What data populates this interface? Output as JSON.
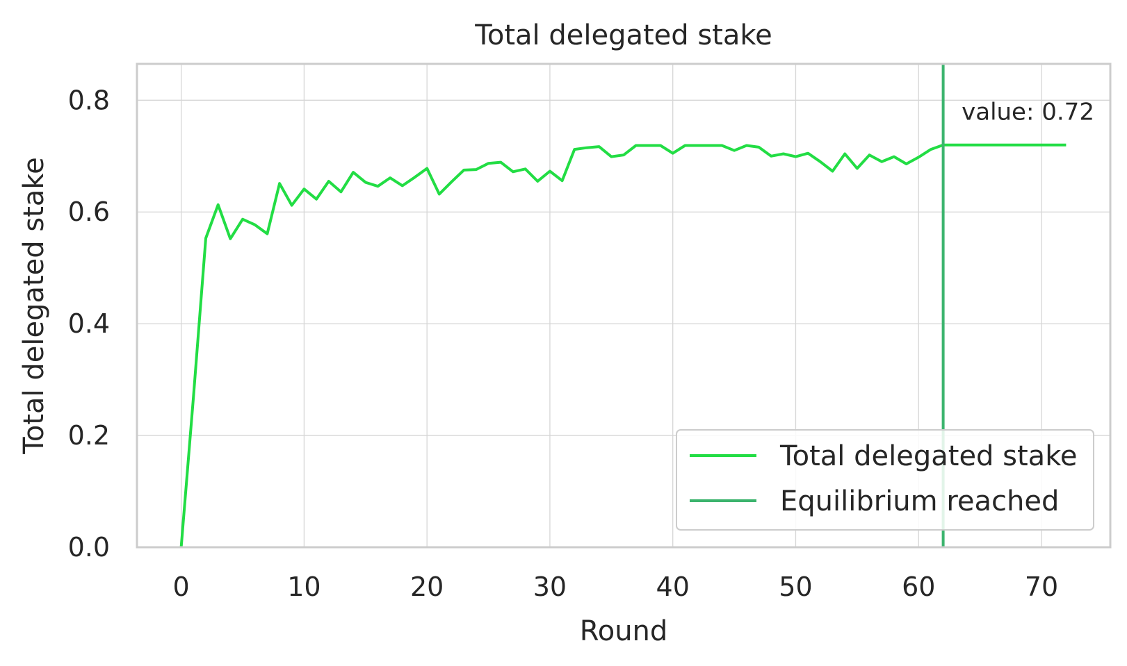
{
  "chart_data": {
    "type": "line",
    "title": "Total delegated stake",
    "xlabel": "Round",
    "ylabel": "Total delegated stake",
    "xlim": [
      -3.6,
      75.6
    ],
    "ylim": [
      0.0,
      0.865
    ],
    "xticks": [
      0,
      10,
      20,
      30,
      40,
      50,
      60,
      70
    ],
    "yticks": [
      0.0,
      0.2,
      0.4,
      0.6,
      0.8
    ],
    "ytick_labels": [
      "0.0",
      "0.2",
      "0.4",
      "0.6",
      "0.8"
    ],
    "grid": true,
    "legend_position": "lower right",
    "series": [
      {
        "name": "Total delegated stake",
        "color": "#22dd44",
        "x": [
          0,
          1,
          2,
          3,
          4,
          5,
          6,
          7,
          8,
          9,
          10,
          11,
          12,
          13,
          14,
          15,
          16,
          17,
          18,
          19,
          20,
          21,
          22,
          23,
          24,
          25,
          26,
          27,
          28,
          29,
          30,
          31,
          32,
          33,
          34,
          35,
          36,
          37,
          38,
          39,
          40,
          41,
          42,
          43,
          44,
          45,
          46,
          47,
          48,
          49,
          50,
          51,
          52,
          53,
          54,
          55,
          56,
          57,
          58,
          59,
          60,
          61,
          62,
          63,
          64,
          65,
          66,
          67,
          68,
          69,
          70,
          71,
          72
        ],
        "y": [
          0.0,
          0.27,
          0.553,
          0.613,
          0.552,
          0.587,
          0.577,
          0.561,
          0.651,
          0.612,
          0.641,
          0.623,
          0.655,
          0.636,
          0.671,
          0.653,
          0.646,
          0.661,
          0.647,
          0.662,
          0.678,
          0.632,
          0.654,
          0.675,
          0.676,
          0.687,
          0.689,
          0.672,
          0.677,
          0.655,
          0.673,
          0.656,
          0.712,
          0.715,
          0.717,
          0.699,
          0.702,
          0.719,
          0.719,
          0.719,
          0.705,
          0.719,
          0.719,
          0.719,
          0.719,
          0.71,
          0.719,
          0.716,
          0.7,
          0.704,
          0.699,
          0.705,
          0.69,
          0.673,
          0.704,
          0.678,
          0.702,
          0.69,
          0.699,
          0.686,
          0.698,
          0.712,
          0.72,
          0.72,
          0.72,
          0.72,
          0.72,
          0.72,
          0.72,
          0.72,
          0.72,
          0.72,
          0.72
        ]
      },
      {
        "name": "Equilibrium reached",
        "color": "#3cb46e",
        "type": "vline",
        "x": 62
      }
    ],
    "annotations": [
      {
        "text": "value: 0.72",
        "x": 63.5,
        "y": 0.765,
        "color": "#000000"
      }
    ]
  }
}
